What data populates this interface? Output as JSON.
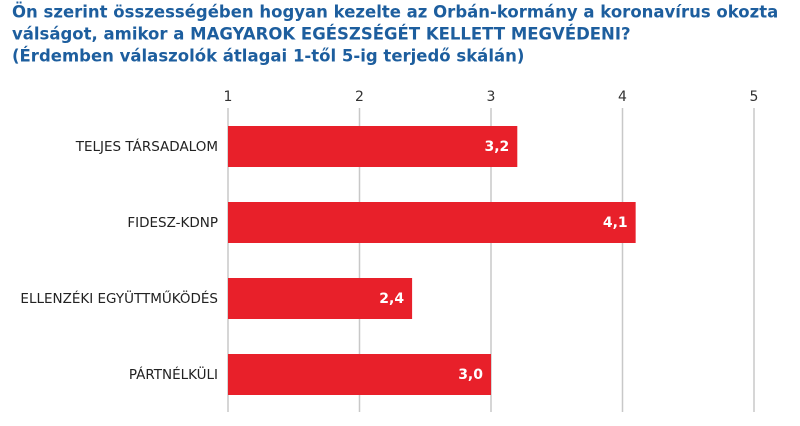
{
  "chart_data": {
    "type": "hbar",
    "title": [
      "Ön szerint összességében hogyan kezelte az Orbán-kormány a koronavírus okozta",
      "válságot, amikor a MAGYAROK EGÉSZSÉGÉT KELLETT MEGVÉDENI?",
      "(Érdemben válaszolók átlagai 1-től 5-ig terjedő skálán)"
    ],
    "categories": [
      "TELJES TÁRSADALOM",
      "FIDESZ-KDNP",
      "ELLENZÉKI EGYÜTTMŰKÖDÉS",
      "PÁRTNÉLKÜLI"
    ],
    "values": [
      3.2,
      4.1,
      2.4,
      3.0
    ],
    "value_labels": [
      "3,2",
      "4,1",
      "2,4",
      "3,0"
    ],
    "color": "#e8202a",
    "xlim": [
      1,
      5
    ],
    "xticks": [
      1,
      2,
      3,
      4,
      5
    ],
    "grid": true
  }
}
